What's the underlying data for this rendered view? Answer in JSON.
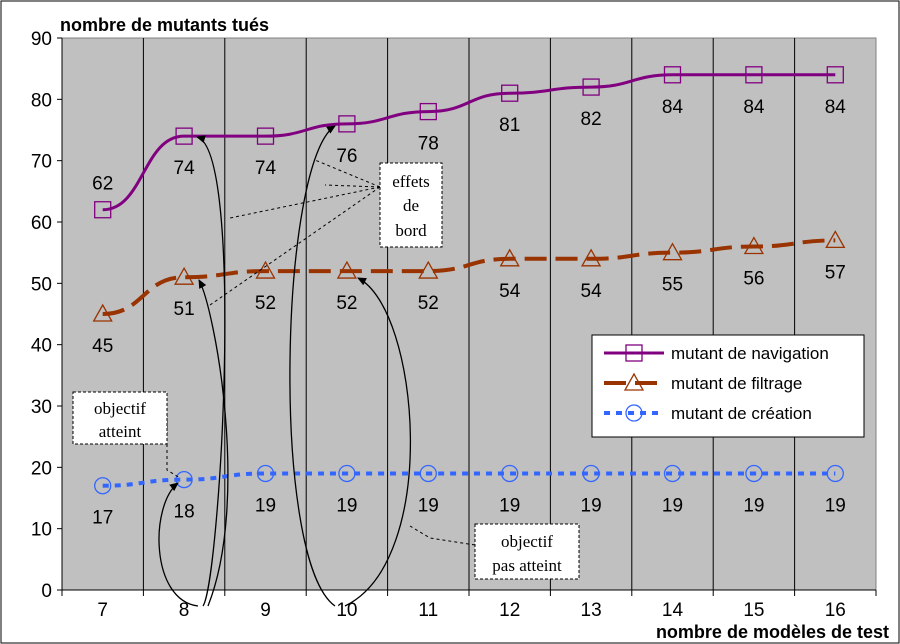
{
  "chart_data": {
    "type": "line",
    "title": "",
    "ylabel": "nombre de mutants tués",
    "xlabel": "nombre de modèles de test",
    "categories": [
      "7",
      "8",
      "9",
      "10",
      "11",
      "12",
      "13",
      "14",
      "15",
      "16"
    ],
    "ylim": [
      0,
      90
    ],
    "yticks": [
      0,
      10,
      20,
      30,
      40,
      50,
      60,
      70,
      80,
      90
    ],
    "grid": true,
    "legend_position": "right",
    "series": [
      {
        "name": "mutant de navigation",
        "values": [
          62,
          74,
          74,
          76,
          78,
          81,
          82,
          84,
          84,
          84
        ],
        "color": "#800080",
        "marker": "square",
        "dash": "solid"
      },
      {
        "name": "mutant de filtrage",
        "values": [
          45,
          51,
          52,
          52,
          52,
          54,
          54,
          55,
          56,
          57
        ],
        "color": "#993300",
        "marker": "triangle",
        "dash": "dashed"
      },
      {
        "name": "mutant de création",
        "values": [
          17,
          18,
          19,
          19,
          19,
          19,
          19,
          19,
          19,
          19
        ],
        "color": "#3366FF",
        "marker": "circle",
        "dash": "dotted"
      }
    ],
    "annotations": [
      {
        "text_lines": [
          "effets",
          "de",
          "bord"
        ]
      },
      {
        "text_lines": [
          "objectif",
          "atteint"
        ]
      },
      {
        "text_lines": [
          "objectif",
          "pas atteint"
        ]
      }
    ]
  }
}
